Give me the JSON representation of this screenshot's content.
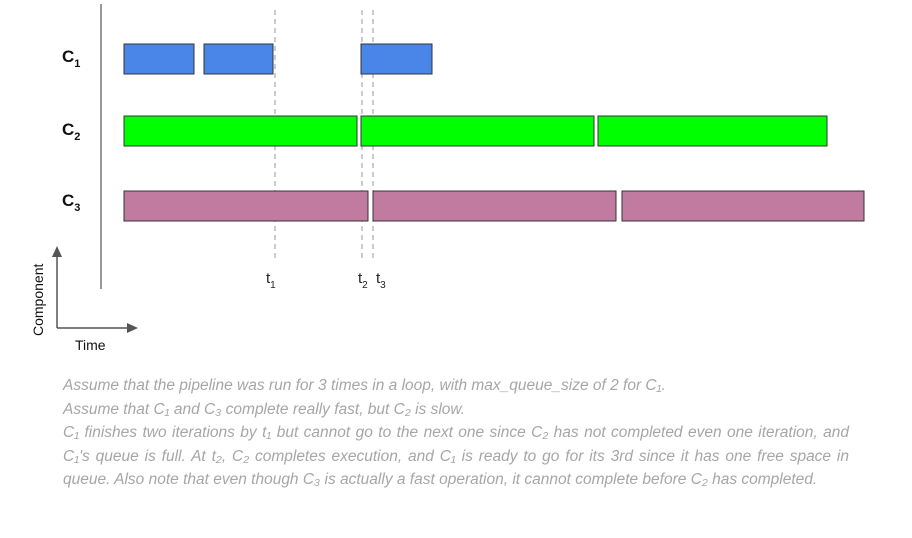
{
  "rows": [
    {
      "id": "c1",
      "label": "C",
      "sub": "1",
      "color": "#4a86e8",
      "bars": [
        [
          124,
          194
        ],
        [
          204,
          273
        ],
        [
          361,
          432
        ]
      ]
    },
    {
      "id": "c2",
      "label": "C",
      "sub": "2",
      "color": "#00ff00",
      "bars": [
        [
          124,
          357
        ],
        [
          361,
          594
        ],
        [
          598,
          827
        ]
      ]
    },
    {
      "id": "c3",
      "label": "C",
      "sub": "3",
      "color": "#c27ba0",
      "bars": [
        [
          124,
          368
        ],
        [
          373,
          616
        ],
        [
          622,
          864
        ]
      ]
    }
  ],
  "times": [
    {
      "id": "t1",
      "label": "t",
      "sub": "1"
    },
    {
      "id": "t2",
      "label": "t",
      "sub": "2"
    },
    {
      "id": "t3",
      "label": "t",
      "sub": "3"
    }
  ],
  "axes": {
    "y_label": "Component",
    "x_label": "Time"
  },
  "caption": {
    "p1": "Assume that the pipeline was run for 3 times in a loop, with max_queue_size of 2 for C₁.",
    "p2": "Assume that C₁ and C₃ complete really fast, but C₂ is slow.",
    "p3": "C₁ finishes two iterations by t₁ but cannot go to the next one since C₂ has not completed even one iteration, and C₁'s queue is full. At t₂, C₂ completes execution, and C₁ is ready to go for its 3rd since it has one free space in queue. Also note that even though C₃ is actually a fast operation, it cannot complete before C₂ has completed."
  },
  "colors": {
    "bar_stroke": "#333333",
    "dashed": "#999999",
    "caption": "#a6a6a6"
  }
}
